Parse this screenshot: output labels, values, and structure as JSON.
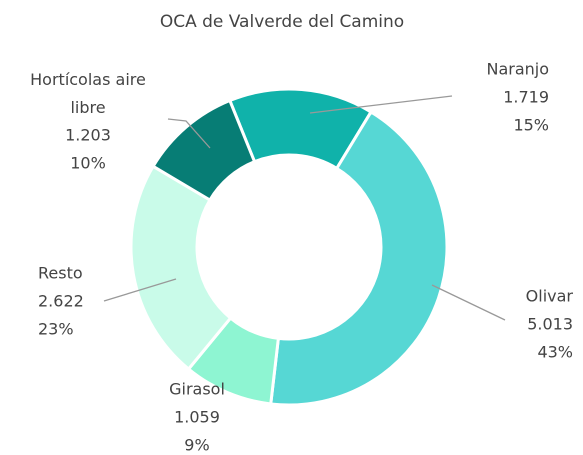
{
  "chart_data": {
    "type": "donut",
    "title": "OCA de Valverde del Camino",
    "categories": [
      "Naranjo",
      "Olivar",
      "Girasol",
      "Resto",
      "Hortícolas aire libre"
    ],
    "values": [
      1719,
      5013,
      1059,
      2622,
      1203
    ],
    "value_labels": [
      "1.719",
      "5.013",
      "1.059",
      "2.622",
      "1.203"
    ],
    "percent_labels": [
      "15%",
      "43%",
      "9%",
      "23%",
      "10%"
    ],
    "colors": [
      "#10b2aa",
      "#56d7d4",
      "#8ef5d2",
      "#c9fbe9",
      "#077d75"
    ]
  }
}
